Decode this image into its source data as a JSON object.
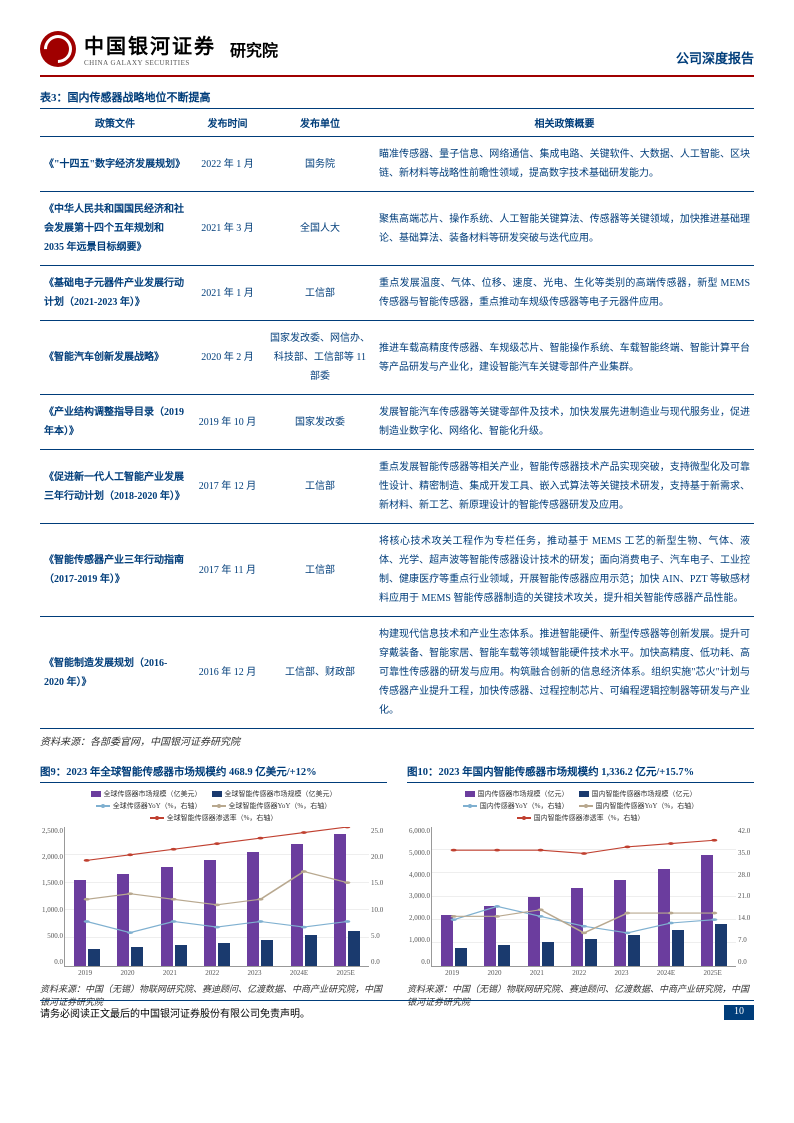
{
  "header": {
    "logo_cn": "中国银河证券",
    "logo_en": "CHINA GALAXY SECURITIES",
    "suffix": "研究院",
    "right": "公司深度报告"
  },
  "table": {
    "title": "表3：国内传感器战略地位不断提高",
    "columns": [
      "政策文件",
      "发布时间",
      "发布单位",
      "相关政策概要"
    ],
    "rows": [
      {
        "doc": "《\"十四五\"数字经济发展规划》",
        "date": "2022 年 1 月",
        "org": "国务院",
        "summary": "瞄准传感器、量子信息、网络通信、集成电路、关键软件、大数据、人工智能、区块链、新材料等战略性前瞻性领域，提高数字技术基础研发能力。"
      },
      {
        "doc": "《中华人民共和国国民经济和社会发展第十四个五年规划和 2035 年远景目标纲要》",
        "date": "2021 年 3 月",
        "org": "全国人大",
        "summary": "聚焦高端芯片、操作系统、人工智能关键算法、传感器等关键领域，加快推进基础理论、基础算法、装备材料等研发突破与迭代应用。"
      },
      {
        "doc": "《基础电子元器件产业发展行动计划（2021-2023 年）》",
        "date": "2021 年 1 月",
        "org": "工信部",
        "summary": "重点发展温度、气体、位移、速度、光电、生化等类别的高端传感器，新型 MEMS 传感器与智能传感器，重点推动车规级传感器等电子元器件应用。"
      },
      {
        "doc": "《智能汽车创新发展战略》",
        "date": "2020 年 2 月",
        "org": "国家发改委、网信办、科技部、工信部等 11 部委",
        "summary": "推进车载高精度传感器、车规级芯片、智能操作系统、车载智能终端、智能计算平台等产品研发与产业化，建设智能汽车关键零部件产业集群。"
      },
      {
        "doc": "《产业结构调整指导目录（2019 年本）》",
        "date": "2019 年 10 月",
        "org": "国家发改委",
        "summary": "发展智能汽车传感器等关键零部件及技术，加快发展先进制造业与现代服务业，促进制造业数字化、网络化、智能化升级。"
      },
      {
        "doc": "《促进新一代人工智能产业发展三年行动计划（2018-2020 年）》",
        "date": "2017 年 12 月",
        "org": "工信部",
        "summary": "重点发展智能传感器等相关产业，智能传感器技术产品实现突破，支持微型化及可靠性设计、精密制造、集成开发工具、嵌入式算法等关键技术研发，支持基于新需求、新材料、新工艺、新原理设计的智能传感器研发及应用。"
      },
      {
        "doc": "《智能传感器产业三年行动指南（2017-2019 年）》",
        "date": "2017 年 11 月",
        "org": "工信部",
        "summary": "将核心技术攻关工程作为专栏任务，推动基于 MEMS 工艺的新型生物、气体、液体、光学、超声波等智能传感器设计技术的研发；面向消费电子、汽车电子、工业控制、健康医疗等重点行业领域，开展智能传感器应用示范；加快 AIN、PZT 等敏感材料应用于 MEMS 智能传感器制造的关键技术攻关，提升相关智能传感器产品性能。"
      },
      {
        "doc": "《智能制造发展规划（2016-2020 年）》",
        "date": "2016 年 12 月",
        "org": "工信部、财政部",
        "summary": "构建现代信息技术和产业生态体系。推进智能硬件、新型传感器等创新发展。提升可穿戴装备、智能家居、智能车载等领域智能硬件技术水平。加快高精度、低功耗、高可靠性传感器的研发与应用。构筑融合创新的信息经济体系。组织实施\"芯火\"计划与传感器产业提升工程，加快传感器、过程控制芯片、可编程逻辑控制器等研发与产业化。"
      }
    ],
    "source": "资料来源：各部委官网，中国银河证券研究院"
  },
  "chart9": {
    "title": "图9：2023 年全球智能传感器市场规模约 468.9 亿美元/+12%",
    "legend": [
      {
        "label": "全球传感器市场规模（亿美元）",
        "type": "bar",
        "color": "#6b3d9e"
      },
      {
        "label": "全球智能传感器市场规模（亿美元）",
        "type": "bar",
        "color": "#1a3a6e"
      },
      {
        "label": "全球传感器YoY（%，右轴）",
        "type": "line",
        "color": "#7fb0d0"
      },
      {
        "label": "全球智能传感器YoY（%，右轴）",
        "type": "line",
        "color": "#b8a88f"
      },
      {
        "label": "全球智能传感器渗透率（%，右轴）",
        "type": "line",
        "color": "#c04030"
      }
    ],
    "y_left": [
      "2,500.0",
      "2,000.0",
      "1,500.0",
      "1,000.0",
      "500.0",
      "0.0"
    ],
    "y_right": [
      "25.0",
      "20.0",
      "15.0",
      "10.0",
      "5.0",
      "0.0"
    ],
    "x": [
      "2019",
      "2020",
      "2021",
      "2022",
      "2023",
      "2024E",
      "2025E"
    ],
    "bars1": [
      1550,
      1650,
      1780,
      1900,
      2050,
      2200,
      2380
    ],
    "bars2": [
      300,
      340,
      380,
      420,
      469,
      550,
      630
    ],
    "line1_y": [
      8,
      6,
      8,
      7,
      8,
      7,
      8
    ],
    "line2_y": [
      12,
      13,
      12,
      11,
      12,
      17,
      15
    ],
    "line3_y": [
      19,
      20,
      21,
      22,
      23,
      24,
      25
    ],
    "y_left_max": 2500,
    "y_right_max": 25,
    "source": "资料来源：中国（无锡）物联网研究院、赛迪顾问、亿渡数据、中商产业研究院，中国银河证券研究院"
  },
  "chart10": {
    "title": "图10：2023 年国内智能传感器市场规模约 1,336.2 亿元/+15.7%",
    "legend": [
      {
        "label": "国内传感器市场规模（亿元）",
        "type": "bar",
        "color": "#6b3d9e"
      },
      {
        "label": "国内智能传感器市场规模（亿元）",
        "type": "bar",
        "color": "#1a3a6e"
      },
      {
        "label": "国内传感器YoY（%，右轴）",
        "type": "line",
        "color": "#7fb0d0"
      },
      {
        "label": "国内智能传感器YoY（%，右轴）",
        "type": "line",
        "color": "#b8a88f"
      },
      {
        "label": "国内智能传感器渗透率（%，右轴）",
        "type": "line",
        "color": "#c04030"
      }
    ],
    "y_left": [
      "6,000.0",
      "5,000.0",
      "4,000.0",
      "3,000.0",
      "2,000.0",
      "1,000.0",
      "0.0"
    ],
    "y_right": [
      "42.0",
      "35.0",
      "28.0",
      "21.0",
      "14.0",
      "7.0",
      "0.0"
    ],
    "x": [
      "2019",
      "2020",
      "2021",
      "2022",
      "2023",
      "2024E",
      "2025E"
    ],
    "bars1": [
      2200,
      2600,
      3000,
      3350,
      3700,
      4200,
      4800
    ],
    "bars2": [
      780,
      900,
      1050,
      1150,
      1336,
      1550,
      1800
    ],
    "line1_y": [
      14,
      18,
      15,
      12,
      10,
      13,
      14
    ],
    "line2_y": [
      15,
      15,
      17,
      10,
      16,
      16,
      16
    ],
    "line3_y": [
      35,
      35,
      35,
      34,
      36,
      37,
      38
    ],
    "y_left_max": 6000,
    "y_right_max": 42,
    "source": "资料来源：中国（无锡）物联网研究院、赛迪顾问、亿渡数据、中商产业研究院，中国银河证券研究院"
  },
  "footer": {
    "text": "请务必阅读正文最后的中国银河证券股份有限公司免责声明。",
    "page": "10"
  }
}
